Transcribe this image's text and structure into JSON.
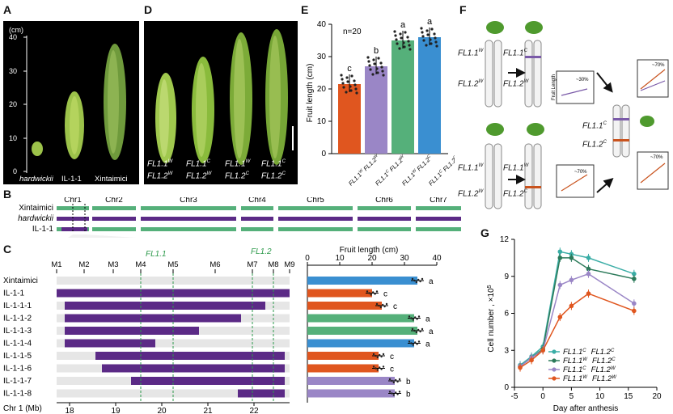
{
  "panels": {
    "A": {
      "label": "A",
      "axis_unit": "(cm)",
      "ticks": [
        "0",
        "10",
        "20",
        "30",
        "40"
      ],
      "captions": [
        "hardwickii",
        "IL-1-1",
        "Xintaimici"
      ]
    },
    "B": {
      "label": "B",
      "rows": [
        "Xintaimici",
        "hardwickii",
        "IL-1-1"
      ],
      "chromosomes": [
        "Chr1",
        "Chr2",
        "Chr3",
        "Chr4",
        "Chr5",
        "Chr6",
        "Chr7"
      ]
    },
    "C": {
      "label": "C",
      "markers": [
        "M1",
        "M2",
        "M3",
        "M4",
        "M5",
        "M6",
        "M7",
        "M8",
        "M9"
      ],
      "qtl": [
        "FL1.1",
        "FL1.2"
      ],
      "lines": [
        "Xintaimici",
        "IL-1-1",
        "IL-1-1-1",
        "IL-1-1-2",
        "IL-1-1-3",
        "IL-1-1-4",
        "IL-1-1-5",
        "IL-1-1-6",
        "IL-1-1-7",
        "IL-1-1-8"
      ],
      "x_axis_label": "Chr 1 (Mb)",
      "x_ticks": [
        "18",
        "19",
        "20",
        "21",
        "22"
      ],
      "bar_title": "Fruit length (cm)",
      "bar_ticks": [
        "0",
        "10",
        "20",
        "30",
        "40"
      ],
      "letters": [
        "a",
        "c",
        "c",
        "a",
        "a",
        "a",
        "c",
        "c",
        "b",
        "b"
      ]
    },
    "D": {
      "label": "D",
      "captions": [
        {
          "l1a": "FL1.1",
          "l1s": "W",
          "l2a": "FL1.2",
          "l2s": "W"
        },
        {
          "l1a": "FL1.1",
          "l1s": "C",
          "l2a": "FL1.2",
          "l2s": "W"
        },
        {
          "l1a": "FL1.1",
          "l1s": "W",
          "l2a": "FL1.2",
          "l2s": "C"
        },
        {
          "l1a": "FL1.1",
          "l1s": "C",
          "l2a": "FL1.2",
          "l2s": "C"
        }
      ]
    },
    "E": {
      "label": "E",
      "n_label": "n=20",
      "ylabel": "Fruit length (cm)",
      "yticks": [
        "0",
        "10",
        "20",
        "30",
        "40"
      ],
      "letters": [
        "c",
        "b",
        "a",
        "a"
      ]
    },
    "F": {
      "label": "F",
      "genotypes": {
        "t1": "FL1.1",
        "t1s": "W",
        "t2": "FL1.2",
        "t2s": "W",
        "t3": "FL1.1",
        "t3s": "C",
        "t4": "FL1.2",
        "t4s": "W",
        "t5": "FL1.1",
        "t5s": "C",
        "t6": "FL1.2",
        "t6s": "C",
        "t7": "FL1.1",
        "t7s": "W",
        "t8": "FL1.2",
        "t8s": "W",
        "t9": "FL1.1",
        "t9s": "W",
        "t10": "FL1.2",
        "t10s": "C"
      },
      "mini_ylabel": "Fruit Length",
      "pct1": "~30%",
      "pct2": "~70%",
      "pct3": "~70%",
      "pct4": "~70%",
      "mini_ticks": [
        "40",
        "30",
        "20"
      ]
    },
    "G": {
      "label": "G",
      "ylabel": "Cell number , ×10",
      "ylabel_sup": "5",
      "xlabel": "Day after anthesis",
      "yticks": [
        "0",
        "3",
        "6",
        "9",
        "12"
      ],
      "xticks": [
        "-5",
        "0",
        "5",
        "10",
        "15",
        "20"
      ],
      "legend": [
        {
          "a": "FL1.1",
          "as": "C",
          "b": "FL1.2",
          "bs": "C"
        },
        {
          "a": "FL1.1",
          "as": "W",
          "b": "FL1.2",
          "bs": "C"
        },
        {
          "a": "FL1.1",
          "as": "C",
          "b": "FL1.2",
          "bs": "W"
        },
        {
          "a": "FL1.1",
          "as": "W",
          "b": "FL1.2",
          "bs": "W"
        }
      ]
    }
  },
  "colors": {
    "purple": "#5b2a86",
    "green": "#55b07a",
    "blue": "#3a8fd1",
    "orange": "#e0561f",
    "lavender": "#9a86c6",
    "teal": "#3aada6",
    "darkgreen": "#2c7a5a",
    "grey": "#e6e6e6"
  },
  "chart_data": [
    {
      "type": "bar",
      "panel": "C",
      "categories": [
        "Xintaimici",
        "IL-1-1",
        "IL-1-1-1",
        "IL-1-1-2",
        "IL-1-1-3",
        "IL-1-1-4",
        "IL-1-1-5",
        "IL-1-1-6",
        "IL-1-1-7",
        "IL-1-1-8"
      ],
      "values": [
        34,
        20,
        23,
        33,
        34,
        33,
        22,
        22,
        27,
        27
      ],
      "xlabel": "Fruit length (cm)",
      "xlim": [
        0,
        40
      ]
    },
    {
      "type": "bar",
      "panel": "E",
      "categories": [
        "FL1.1W FL1.2W",
        "FL1.1C FL1.2W",
        "FL1.1W FL1.2C",
        "FL1.1C FL1.2C"
      ],
      "values": [
        21.5,
        27,
        35,
        36
      ],
      "ylabel": "Fruit length (cm)",
      "ylim": [
        0,
        40
      ]
    },
    {
      "type": "line",
      "panel": "G",
      "x": [
        -4,
        -2,
        0,
        3,
        5,
        8,
        16
      ],
      "series": [
        {
          "name": "FL1.1C FL1.2C",
          "values": [
            1.8,
            2.5,
            3.3,
            11.0,
            10.8,
            10.5,
            9.2
          ]
        },
        {
          "name": "FL1.1W FL1.2C",
          "values": [
            1.7,
            2.4,
            3.1,
            10.5,
            10.5,
            9.6,
            8.8
          ]
        },
        {
          "name": "FL1.1C FL1.2W",
          "values": [
            1.7,
            2.4,
            3.0,
            8.3,
            8.7,
            9.2,
            6.8
          ]
        },
        {
          "name": "FL1.1W FL1.2W",
          "values": [
            1.6,
            2.2,
            3.0,
            5.7,
            6.6,
            7.6,
            6.2
          ]
        }
      ],
      "xlabel": "Day after anthesis",
      "ylabel": "Cell number , ×10",
      "xlim": [
        -5,
        20
      ],
      "ylim": [
        0,
        12
      ]
    }
  ]
}
